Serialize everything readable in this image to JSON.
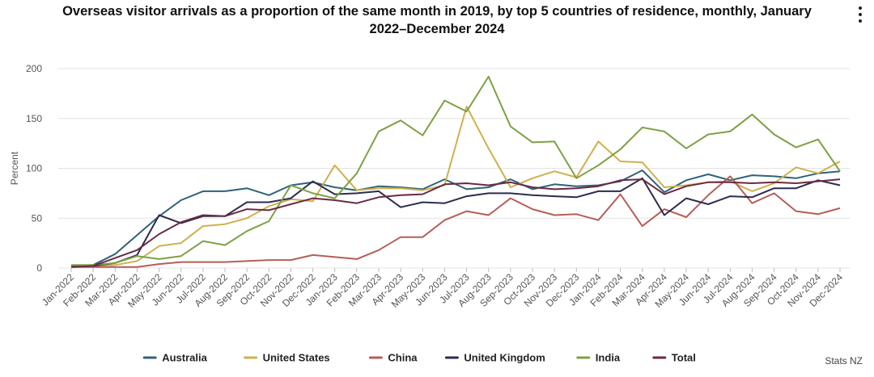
{
  "chart_data": {
    "type": "line",
    "title_line1": "Overseas visitor arrivals as a proportion of the same month in 2019, by top 5 countries of residence, monthly, January",
    "title_line2": "2022–December 2024",
    "xlabel": "",
    "ylabel": "Percent",
    "ylim": [
      0,
      200
    ],
    "yticks": [
      0,
      50,
      100,
      150,
      200
    ],
    "grid": "horizontal",
    "legend_position": "bottom",
    "categories": [
      "Jan-2022",
      "Feb-2022",
      "Mar-2022",
      "Apr-2022",
      "May-2022",
      "Jun-2022",
      "Jul-2022",
      "Aug-2022",
      "Sep-2022",
      "Oct-2022",
      "Nov-2022",
      "Dec-2022",
      "Jan-2023",
      "Feb-2023",
      "Mar-2023",
      "Apr-2023",
      "May-2023",
      "Jun-2023",
      "Jul-2023",
      "Aug-2023",
      "Sep-2023",
      "Oct-2023",
      "Nov-2023",
      "Dec-2023",
      "Jan-2024",
      "Feb-2024",
      "Mar-2024",
      "Apr-2024",
      "May-2024",
      "Jun-2024",
      "Jul-2024",
      "Aug-2024",
      "Sep-2024",
      "Oct-2024",
      "Nov-2024",
      "Dec-2024"
    ],
    "series": [
      {
        "name": "Australia",
        "color": "#2e6378",
        "values": [
          2,
          3,
          14,
          33,
          52,
          68,
          77,
          77,
          80,
          73,
          83,
          86,
          81,
          78,
          82,
          81,
          79,
          89,
          79,
          81,
          89,
          79,
          84,
          82,
          83,
          87,
          98,
          76,
          88,
          94,
          88,
          93,
          92,
          90,
          95,
          97
        ]
      },
      {
        "name": "United States",
        "color": "#cdb14e",
        "values": [
          2,
          2,
          3,
          7,
          22,
          25,
          42,
          44,
          50,
          62,
          69,
          67,
          103,
          78,
          80,
          80,
          78,
          83,
          162,
          120,
          81,
          90,
          97,
          91,
          127,
          107,
          106,
          81,
          83,
          86,
          87,
          77,
          85,
          101,
          95,
          107
        ]
      },
      {
        "name": "China",
        "color": "#b55e58",
        "values": [
          1,
          1,
          1,
          1,
          4,
          6,
          6,
          6,
          7,
          8,
          8,
          13,
          11,
          9,
          18,
          31,
          31,
          48,
          57,
          53,
          70,
          59,
          53,
          54,
          48,
          74,
          42,
          59,
          51,
          73,
          92,
          65,
          75,
          57,
          54,
          60
        ]
      },
      {
        "name": "United Kingdom",
        "color": "#2c2c4e",
        "values": [
          2,
          2,
          5,
          13,
          53,
          45,
          52,
          52,
          66,
          66,
          70,
          87,
          74,
          75,
          77,
          61,
          66,
          65,
          72,
          75,
          75,
          73,
          72,
          71,
          77,
          77,
          90,
          53,
          70,
          64,
          72,
          71,
          80,
          80,
          88,
          83
        ]
      },
      {
        "name": "India",
        "color": "#7ea045",
        "values": [
          3,
          3,
          5,
          12,
          9,
          12,
          27,
          23,
          37,
          47,
          83,
          75,
          70,
          95,
          137,
          148,
          133,
          168,
          157,
          192,
          142,
          126,
          127,
          90,
          103,
          119,
          141,
          137,
          120,
          134,
          137,
          154,
          134,
          121,
          129,
          97
        ]
      },
      {
        "name": "Total",
        "color": "#6b2a42",
        "values": [
          1,
          2,
          10,
          18,
          34,
          46,
          53,
          52,
          59,
          58,
          64,
          70,
          68,
          65,
          71,
          73,
          74,
          84,
          85,
          83,
          86,
          81,
          79,
          80,
          82,
          88,
          89,
          74,
          82,
          86,
          86,
          85,
          86,
          85,
          87,
          89
        ]
      }
    ],
    "source_note": "Stats NZ"
  }
}
